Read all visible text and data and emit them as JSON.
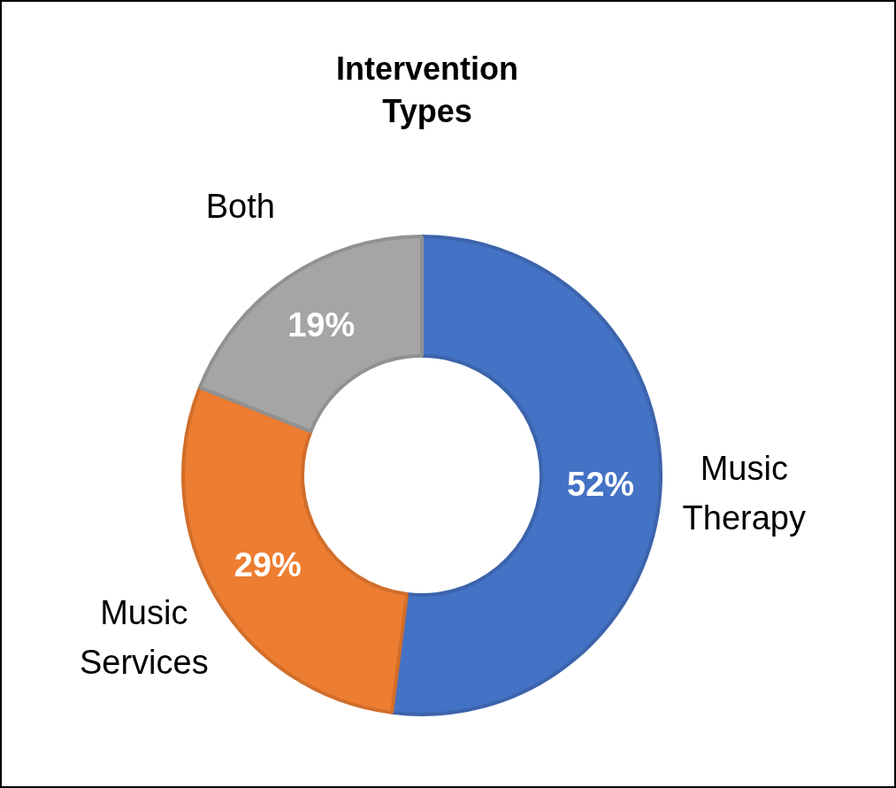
{
  "chart_data": {
    "type": "donut",
    "title": "Intervention Types",
    "categories": [
      "Music Therapy",
      "Music Services",
      "Both"
    ],
    "values": [
      52,
      29,
      19
    ],
    "colors": [
      "#4472c4",
      "#ed7d31",
      "#a5a5a5"
    ],
    "value_labels": [
      "52%",
      "29%",
      "19%"
    ],
    "legend": false
  }
}
